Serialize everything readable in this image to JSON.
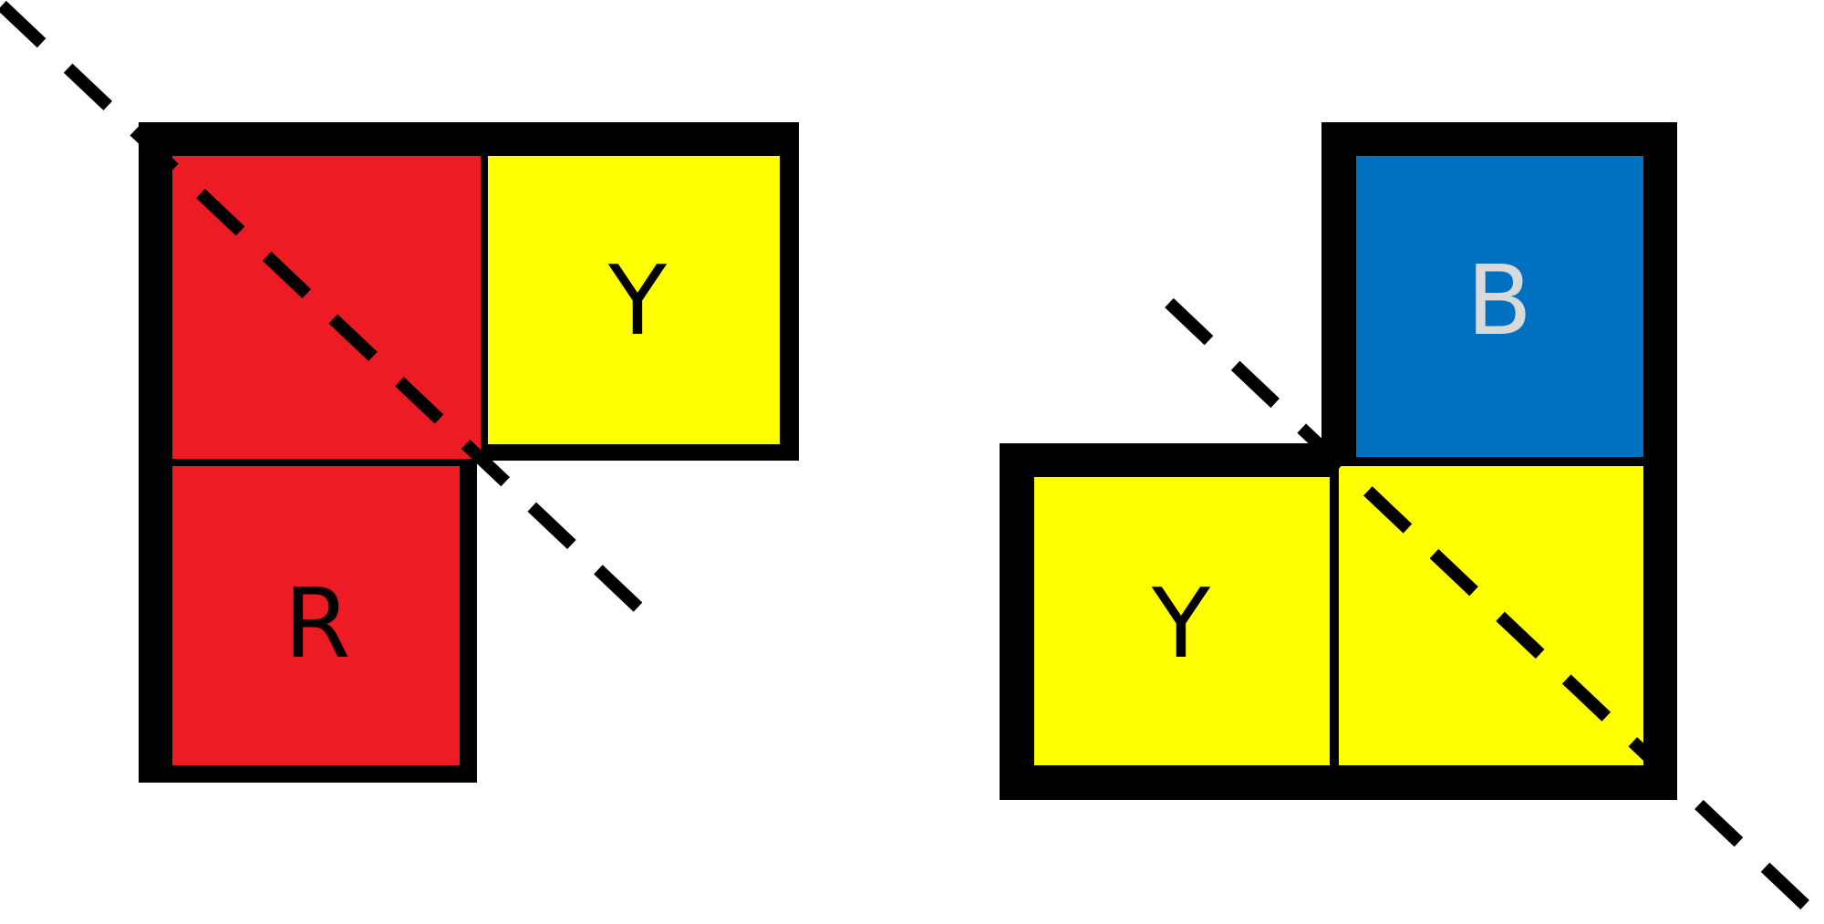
{
  "colors": {
    "red": "#ED1C24",
    "yellow": "#FFFF00",
    "blue": "#0070C0",
    "outline": "#000000",
    "dark_letter": "#000000",
    "light_letter": "#D9D9D9"
  },
  "left_shape": {
    "cells": [
      {
        "color": "red",
        "label": ""
      },
      {
        "color": "yellow",
        "label": "Y"
      },
      {
        "color": "red",
        "label": "R"
      }
    ]
  },
  "right_shape": {
    "cells": [
      {
        "color": "blue",
        "label": "B"
      },
      {
        "color": "yellow",
        "label": "Y"
      },
      {
        "color": "yellow",
        "label": ""
      }
    ]
  }
}
